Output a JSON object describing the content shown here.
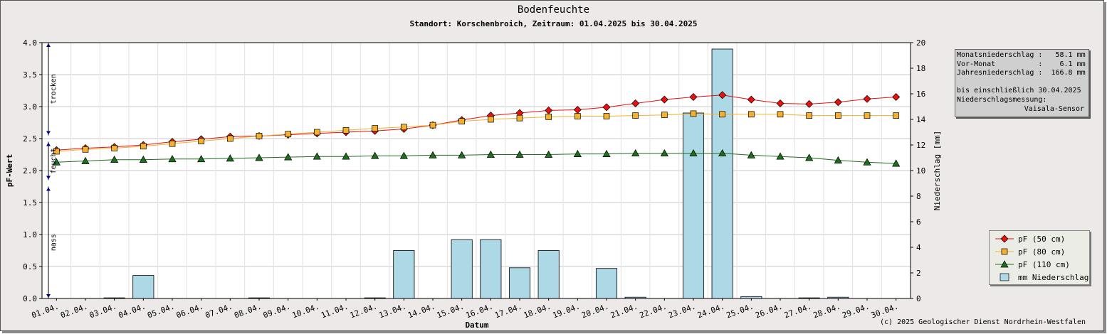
{
  "header": {
    "title": "Bodenfeuchte",
    "subtitle": "Standort: Korschenbroich, Zeitraum: 01.04.2025 bis 30.04.2025"
  },
  "infobox": {
    "line1": "Monatsniederschlag :   58.1 mm",
    "line2": "Vor-Monat          :    6.1 mm",
    "line3": "Jahresniederschlag :  166.8 mm",
    "line4": "bis einschließlich 30.04.2025",
    "line5": "Niederschlagsmessung:",
    "line6": "Vaisala-Sensor"
  },
  "zones": {
    "dry": "trocken",
    "moist": "feucht",
    "wet": "nass"
  },
  "copyright": "(c) 2025 Geologischer Dienst Nordrhein-Westfalen",
  "colors": {
    "pf50": "#e81010",
    "pf80": "#f5b030",
    "pf110": "#1e6e1e",
    "bars": "#add8e6",
    "zone_arrows": "#00008b"
  },
  "chart_data": {
    "type": "line",
    "xlabel": "Datum",
    "ylabel": "pF-Wert",
    "y2label": "Niederschlag [mm]",
    "categories": [
      "01.04.",
      "02.04.",
      "03.04.",
      "04.04.",
      "05.04.",
      "06.04.",
      "07.04.",
      "08.04.",
      "09.04.",
      "10.04.",
      "11.04.",
      "12.04.",
      "13.04.",
      "14.04.",
      "15.04.",
      "16.04.",
      "17.04.",
      "18.04.",
      "19.04.",
      "20.04.",
      "21.04.",
      "22.04.",
      "23.04.",
      "24.04.",
      "25.04.",
      "26.04.",
      "27.04.",
      "28.04.",
      "29.04.",
      "30.04."
    ],
    "ylim": [
      0,
      4
    ],
    "yticks": [
      "0.0",
      "0.5",
      "1.0",
      "1.5",
      "2.0",
      "2.5",
      "3.0",
      "3.5",
      "4.0"
    ],
    "y2lim": [
      0,
      20
    ],
    "y2ticks": [
      "0",
      "2",
      "4",
      "6",
      "8",
      "10",
      "12",
      "14",
      "16",
      "18",
      "20"
    ],
    "grid": true,
    "legend_position": "bottom-right",
    "series": [
      {
        "name": "pF (50 cm)",
        "marker": "diamond",
        "axis": "left",
        "values": [
          2.32,
          2.35,
          2.37,
          2.4,
          2.45,
          2.49,
          2.53,
          2.54,
          2.56,
          2.58,
          2.6,
          2.62,
          2.65,
          2.71,
          2.79,
          2.86,
          2.9,
          2.94,
          2.95,
          2.99,
          3.05,
          3.11,
          3.15,
          3.18,
          3.11,
          3.05,
          3.04,
          3.07,
          3.12,
          3.15
        ]
      },
      {
        "name": "pF (80 cm)",
        "marker": "square",
        "axis": "left",
        "values": [
          2.3,
          2.33,
          2.35,
          2.38,
          2.42,
          2.46,
          2.5,
          2.54,
          2.57,
          2.6,
          2.63,
          2.66,
          2.68,
          2.71,
          2.77,
          2.8,
          2.82,
          2.84,
          2.85,
          2.85,
          2.86,
          2.87,
          2.89,
          2.88,
          2.88,
          2.88,
          2.86,
          2.86,
          2.86,
          2.86
        ]
      },
      {
        "name": "pF (110 cm)",
        "marker": "triangle",
        "axis": "left",
        "values": [
          2.13,
          2.15,
          2.17,
          2.17,
          2.18,
          2.18,
          2.19,
          2.2,
          2.21,
          2.22,
          2.22,
          2.23,
          2.23,
          2.24,
          2.24,
          2.25,
          2.25,
          2.25,
          2.26,
          2.26,
          2.27,
          2.27,
          2.27,
          2.27,
          2.24,
          2.22,
          2.2,
          2.16,
          2.13,
          2.11
        ]
      },
      {
        "name": "mm  Niederschlag",
        "marker": "bar",
        "axis": "right",
        "values": [
          0,
          0,
          0.05,
          1.8,
          0,
          0,
          0,
          0.05,
          0,
          0,
          0,
          0.05,
          3.75,
          0,
          4.6,
          4.6,
          2.4,
          3.75,
          0,
          2.35,
          0.1,
          0,
          14.5,
          19.5,
          0.15,
          0,
          0.05,
          0.1,
          0,
          0
        ]
      }
    ]
  }
}
